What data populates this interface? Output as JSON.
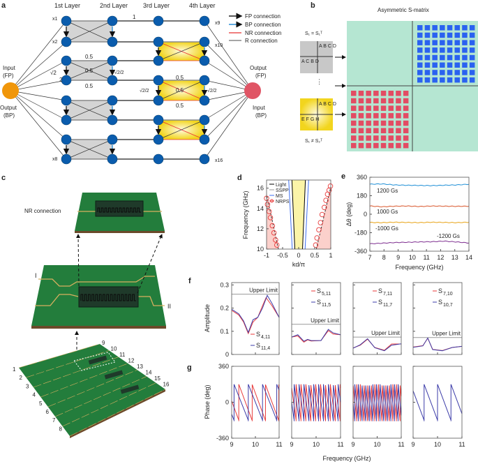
{
  "panel_labels": {
    "a": "a",
    "b": "b",
    "c": "c",
    "d": "d",
    "e": "e",
    "f": "f",
    "g": "g"
  },
  "panel_a": {
    "layers": [
      "1st Layer",
      "2nd Layer",
      "3rd Layer",
      "4th Layer"
    ],
    "legend": [
      "FP connection",
      "BP connection",
      "NR connection",
      "R connection"
    ],
    "left_port": {
      "top": "Input",
      "top2": "(FP)",
      "bottom": "Output",
      "bottom2": "(BP)"
    },
    "right_port": {
      "top": "Output",
      "top2": "(FP)",
      "bottom": "Input",
      "bottom2": "(BP)"
    },
    "node_labels": {
      "x1": "x1",
      "x2": "x2",
      "x8": "x8",
      "x9": "x9",
      "x10": "x10",
      "x16": "x16"
    },
    "weights": {
      "one": "1",
      "half": "0.5",
      "sqrt2": "√2",
      "two": "2",
      "sqrt2_over_2": "√2/2"
    },
    "colors": {
      "node": "#0a5cad",
      "input": "#f0960a",
      "output": "#e05565",
      "gray_box": "#d4d4d4",
      "yellow_box": "#f5e23a",
      "nr": "#e83030",
      "bp": "#2b8fd6"
    }
  },
  "panel_b": {
    "title": "Asymmetric S-matrix",
    "sym_label": "S₁ = S₁ᵀ",
    "asym_label": "S₁ ≠ S₂ᵀ",
    "sym_block_tr": "A B C D",
    "sym_block_bl": "A C B D",
    "asym_block_tr": "A B C D",
    "asym_block_bl": "E F G H",
    "colors": {
      "bg": "#b5e6d2",
      "blue": "#2a62f0",
      "red": "#e34b63"
    }
  },
  "panel_c": {
    "nr_label": "NR connection",
    "port_I": "I",
    "port_II": "II",
    "ports_left": [
      "1",
      "2",
      "3",
      "4",
      "5",
      "6",
      "7",
      "8"
    ],
    "ports_right": [
      "9",
      "10",
      "11",
      "12",
      "13",
      "14",
      "15",
      "16"
    ],
    "colors": {
      "board": "#1e7a3a",
      "trace": "#d8b060",
      "chip": "#1f3a2a"
    }
  },
  "chart_data": [
    {
      "id": "d",
      "type": "line",
      "xlabel": "kd/π",
      "ylabel": "Frequency (GHz)",
      "xlim": [
        -1,
        1
      ],
      "ylim": [
        10,
        16.8
      ],
      "xticks": [
        "-1",
        "-0.5",
        "0",
        "0.5",
        "1"
      ],
      "xtick_vals": [
        -1,
        -0.5,
        0,
        0.5,
        1
      ],
      "yticks": [
        "10",
        "12",
        "14",
        "16"
      ],
      "ytick_vals": [
        10,
        12,
        14,
        16
      ],
      "legend": [
        "Light",
        "SSPP",
        "MS",
        "NRPS"
      ],
      "series": [
        {
          "name": "Light",
          "color": "#000",
          "lines": [
            [
              [
                -0.12,
                10
              ],
              [
                -0.21,
                16.8
              ]
            ],
            [
              [
                0.12,
                10
              ],
              [
                0.21,
                16.8
              ]
            ]
          ]
        },
        {
          "name": "MS",
          "color": "#3d6ff0",
          "lines": [
            [
              [
                -0.2,
                10
              ],
              [
                -0.31,
                16.8
              ]
            ],
            [
              [
                0.2,
                10
              ],
              [
                0.31,
                16.8
              ]
            ]
          ]
        },
        {
          "name": "SSPP",
          "color": "#333",
          "dash": true,
          "lines": [
            [
              [
                -0.63,
                10
              ],
              [
                -1,
                15.4
              ]
            ],
            [
              [
                0.55,
                10
              ],
              [
                1,
                16.1
              ]
            ]
          ]
        },
        {
          "name": "NRPS",
          "color": "#e83a3a",
          "points": [
            [
              -1,
              15
            ],
            [
              -0.97,
              14.4
            ],
            [
              -0.92,
              13.7
            ],
            [
              -0.88,
              13.1
            ],
            [
              -0.82,
              12.3
            ],
            [
              -0.77,
              11.6
            ],
            [
              -0.72,
              10.9
            ],
            [
              -0.68,
              10.4
            ],
            [
              0.53,
              10.4
            ],
            [
              0.57,
              11.1
            ],
            [
              0.63,
              11.9
            ],
            [
              0.68,
              12.6
            ],
            [
              0.73,
              13.4
            ],
            [
              0.8,
              14.1
            ],
            [
              0.85,
              14.8
            ],
            [
              0.9,
              15.4
            ],
            [
              0.95,
              15.8
            ],
            [
              0.99,
              16.2
            ]
          ]
        }
      ]
    },
    {
      "id": "e",
      "type": "line",
      "xlabel": "Frequency (GHz)",
      "ylabel": "Δθ (deg)",
      "xlim": [
        7,
        14
      ],
      "ylim": [
        -360,
        360
      ],
      "xticks": [
        "7",
        "8",
        "9",
        "10",
        "11",
        "12",
        "13",
        "14"
      ],
      "xtick_vals": [
        7,
        8,
        9,
        10,
        11,
        12,
        13,
        14
      ],
      "yticks": [
        "360",
        "180",
        "0",
        "-180",
        "-360"
      ],
      "ytick_vals": [
        360,
        180,
        0,
        -180,
        -360
      ],
      "series": [
        {
          "name": "1200 Gs",
          "color": "#1f8fd6",
          "values": [
            292,
            295,
            285,
            282,
            280,
            278,
            282,
            285,
            292
          ]
        },
        {
          "name": "1000 Gs",
          "color": "#d9562b",
          "values": [
            80,
            72,
            78,
            80,
            75,
            80,
            78,
            77,
            78
          ]
        },
        {
          "name": "-1000 Gs",
          "color": "#e8a317",
          "values": [
            -80,
            -82,
            -78,
            -80,
            -82,
            -78,
            -80,
            -82,
            -78
          ]
        },
        {
          "name": "-1200 Gs",
          "color": "#7d2d8f",
          "values": [
            -288,
            -282,
            -276,
            -273,
            -270,
            -268,
            -262,
            -270,
            -280
          ]
        }
      ]
    },
    {
      "id": "f",
      "type": "line",
      "ylabel": "Amplitude",
      "xlabel": "Frequency (GHz)",
      "xlim": [
        9,
        11
      ],
      "ylim": [
        0,
        0.31
      ],
      "yticks": [
        "0",
        "0.1",
        "0.2",
        "0.3"
      ],
      "ytick_vals": [
        0,
        0.1,
        0.2,
        0.3
      ],
      "upper_limit_label": "Upper Limit",
      "subplots": [
        {
          "upper_limit": 0.26,
          "series": [
            {
              "name": "S4,11",
              "main": "S",
              "sub": "4,11",
              "color": "#e83a3a",
              "x": [
                9,
                9.3,
                9.5,
                9.7,
                9.9,
                10.1,
                10.3,
                10.45,
                10.7,
                11
              ],
              "y": [
                0.19,
                0.17,
                0.14,
                0.09,
                0.14,
                0.16,
                0.21,
                0.245,
                0.21,
                0.16
              ]
            },
            {
              "name": "S11,4",
              "main": "S",
              "sub": "11,4",
              "color": "#3b3ba8",
              "x": [
                9,
                9.3,
                9.5,
                9.7,
                9.9,
                10.1,
                10.3,
                10.5,
                10.7,
                11
              ],
              "y": [
                0.195,
                0.175,
                0.145,
                0.095,
                0.15,
                0.16,
                0.2,
                0.255,
                0.22,
                0.16
              ]
            }
          ]
        },
        {
          "upper_limit": 0.13,
          "series": [
            {
              "name": "S5,11",
              "main": "S",
              "sub": "5,11",
              "color": "#e83a3a",
              "x": [
                9,
                9.25,
                9.5,
                9.65,
                9.8,
                10.2,
                10.5,
                10.7,
                11
              ],
              "y": [
                0.075,
                0.08,
                0.053,
                0.063,
                0.058,
                0.06,
                0.103,
                0.088,
                0.085
              ]
            },
            {
              "name": "S11,5",
              "main": "S",
              "sub": "11,5",
              "color": "#3b3ba8",
              "x": [
                9,
                9.25,
                9.5,
                9.65,
                9.8,
                10.2,
                10.5,
                10.7,
                11
              ],
              "y": [
                0.075,
                0.085,
                0.057,
                0.065,
                0.06,
                0.06,
                0.108,
                0.093,
                0.085
              ]
            }
          ]
        },
        {
          "upper_limit": 0.075,
          "series": [
            {
              "name": "S7,11",
              "main": "S",
              "sub": "7,11",
              "color": "#e83a3a",
              "x": [
                9,
                9.3,
                9.6,
                9.9,
                10.3,
                10.6,
                11
              ],
              "y": [
                0.028,
                0.04,
                0.066,
                0.03,
                0.018,
                0.045,
                0.045
              ]
            },
            {
              "name": "S11,7",
              "main": "S",
              "sub": "11,7",
              "color": "#3b3ba8",
              "x": [
                9,
                9.3,
                9.6,
                9.9,
                10.3,
                10.6,
                11
              ],
              "y": [
                0.027,
                0.042,
                0.068,
                0.029,
                0.016,
                0.04,
                0.046
              ]
            }
          ]
        },
        {
          "upper_limit": 0.073,
          "series": [
            {
              "name": "S7,10",
              "main": "S",
              "sub": "7,10",
              "color": "#e83a3a",
              "x": [
                9,
                9.4,
                9.6,
                9.8,
                10.2,
                10.6,
                11
              ],
              "y": [
                0.032,
                0.038,
                0.07,
                0.022,
                0.017,
                0.03,
                0.035
              ]
            },
            {
              "name": "S10,7",
              "main": "S",
              "sub": "10,7",
              "color": "#3b3ba8",
              "x": [
                9,
                9.4,
                9.6,
                9.8,
                10.2,
                10.6,
                11
              ],
              "y": [
                0.031,
                0.037,
                0.071,
                0.021,
                0.016,
                0.03,
                0.035
              ]
            }
          ]
        }
      ]
    },
    {
      "id": "g",
      "type": "line",
      "ylabel": "Phase (deg)",
      "xlabel": "Frequency (GHz)",
      "xlim": [
        9,
        11
      ],
      "ylim": [
        -360,
        360
      ],
      "xticks": [
        "9",
        "10",
        "11"
      ],
      "xtick_vals": [
        9,
        10,
        11
      ],
      "yticks": [
        "360",
        "0",
        "-360"
      ],
      "ytick_vals": [
        360,
        0,
        -360
      ],
      "subplots": [
        {
          "series": [
            {
              "color": "#e83a3a",
              "first_wrap": 9.3,
              "period": 0.56
            },
            {
              "color": "#3b3ba8",
              "first_wrap": 9.7,
              "period": 0.6
            }
          ]
        },
        {
          "series": [
            {
              "color": "#e83a3a",
              "first_wrap": 9.18,
              "period": 0.2
            },
            {
              "color": "#3b3ba8",
              "first_wrap": 9.1,
              "period": 0.2
            }
          ]
        },
        {
          "series": [
            {
              "color": "#e83a3a",
              "first_wrap": 9.15,
              "period": 0.15
            },
            {
              "color": "#3b3ba8",
              "first_wrap": 9.07,
              "period": 0.15
            }
          ]
        },
        {
          "series": [
            {
              "color": "#3b3ba8",
              "first_wrap": 9.45,
              "period": 0.55
            }
          ]
        }
      ]
    }
  ]
}
